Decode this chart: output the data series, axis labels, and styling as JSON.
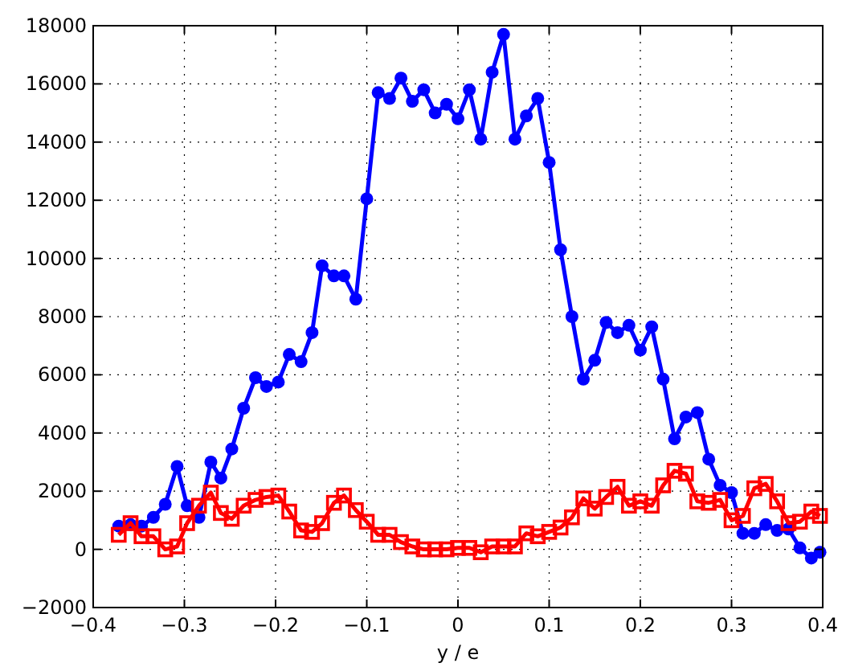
{
  "chart_data": {
    "type": "line",
    "xlabel": "y / e",
    "xlim": [
      -0.4,
      0.4
    ],
    "xticks": [
      -0.4,
      -0.3,
      -0.2,
      -0.1,
      0,
      0.1,
      0.2,
      0.3,
      0.4
    ],
    "ylim": [
      -2000,
      18000
    ],
    "yticks": [
      -2000,
      0,
      2000,
      4000,
      6000,
      8000,
      10000,
      12000,
      14000,
      16000,
      18000
    ],
    "grid": true,
    "line_style": "solid",
    "x": [
      -0.372,
      -0.359,
      -0.347,
      -0.334,
      -0.321,
      -0.308,
      -0.297,
      -0.284,
      -0.271,
      -0.26,
      -0.248,
      -0.235,
      -0.222,
      -0.21,
      -0.197,
      -0.185,
      -0.172,
      -0.16,
      -0.149,
      -0.136,
      -0.125,
      -0.112,
      -0.1,
      -0.0875,
      -0.075,
      -0.0625,
      -0.05,
      -0.0375,
      -0.025,
      -0.0125,
      0,
      0.0125,
      0.025,
      0.0375,
      0.05,
      0.0625,
      0.075,
      0.0875,
      0.1,
      0.1125,
      0.125,
      0.1375,
      0.15,
      0.1625,
      0.175,
      0.1875,
      0.2,
      0.2125,
      0.225,
      0.2375,
      0.25,
      0.2625,
      0.275,
      0.2875,
      0.3,
      0.3125,
      0.325,
      0.3375,
      0.35,
      0.3625,
      0.375,
      0.3875,
      0.397
    ],
    "series": [
      {
        "color": "#0000ff",
        "marker": "circle",
        "values": [
          800,
          850,
          800,
          1100,
          1550,
          2850,
          1500,
          1100,
          3000,
          2450,
          3450,
          4850,
          5900,
          5600,
          5750,
          6700,
          6450,
          7450,
          9750,
          9400,
          9400,
          8600,
          12050,
          15700,
          15500,
          16200,
          15400,
          15800,
          15000,
          15300,
          14800,
          15800,
          14100,
          16400,
          17700,
          14100,
          14900,
          15500,
          13300,
          10300,
          8000,
          5850,
          6500,
          7800,
          7450,
          7700,
          6850,
          7650,
          5850,
          3800,
          4550,
          4700,
          3100,
          2200,
          1950,
          550,
          550,
          850,
          650,
          700,
          50,
          -300,
          -100
        ]
      },
      {
        "color": "#ff0000",
        "marker": "square",
        "values": [
          500,
          900,
          450,
          450,
          0,
          100,
          900,
          1500,
          1950,
          1250,
          1050,
          1500,
          1700,
          1800,
          1850,
          1300,
          650,
          600,
          900,
          1600,
          1850,
          1350,
          950,
          500,
          500,
          250,
          100,
          0,
          0,
          0,
          50,
          50,
          -100,
          100,
          100,
          100,
          550,
          450,
          600,
          750,
          1100,
          1750,
          1400,
          1800,
          2150,
          1500,
          1650,
          1500,
          2200,
          2700,
          2600,
          1650,
          1600,
          1700,
          1000,
          1150,
          2100,
          2250,
          1650,
          900,
          950,
          1300,
          1150
        ]
      }
    ]
  }
}
